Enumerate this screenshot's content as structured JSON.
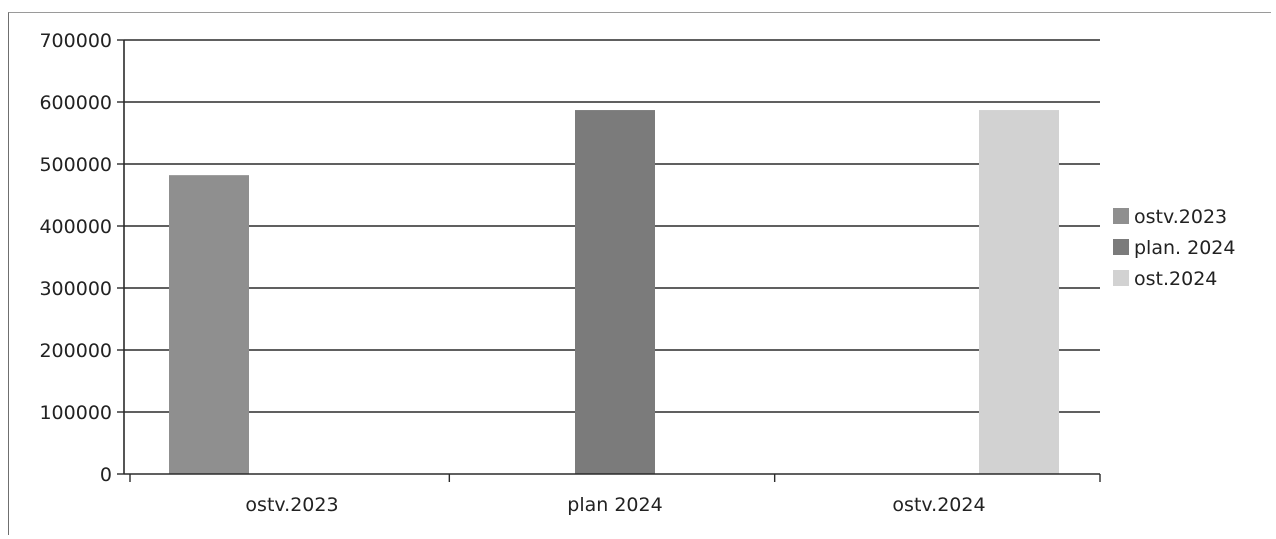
{
  "chart_data": {
    "type": "bar",
    "categories": [
      "ostv.2023",
      "plan 2024",
      "ostv.2024"
    ],
    "values": [
      482000,
      587000,
      587000
    ],
    "bar_colors": [
      "#8f8f8f",
      "#7b7b7b",
      "#d2d2d2"
    ],
    "ylim": [
      0,
      700000
    ],
    "yticks": [
      0,
      100000,
      200000,
      300000,
      400000,
      500000,
      600000,
      700000
    ],
    "grid": true,
    "legend_position": "right",
    "legend": [
      {
        "label": "ostv.2023",
        "color": "#8f8f8f"
      },
      {
        "label": "plan. 2024",
        "color": "#7b7b7b"
      },
      {
        "label": "ost.2024",
        "color": "#d2d2d2"
      }
    ]
  }
}
